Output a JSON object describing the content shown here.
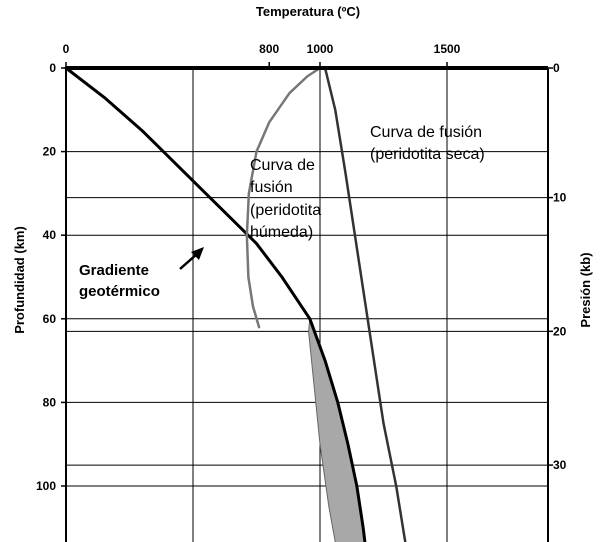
{
  "chart_data": {
    "type": "line",
    "title": "",
    "xlabel": "Temperatura (ºC)",
    "ylabel": "Profundidad (km)",
    "y2label": "Presión (kb)",
    "xlim": [
      0,
      1850
    ],
    "ylim": [
      0,
      115
    ],
    "x_ticks": [
      0,
      800,
      1000,
      1500
    ],
    "x_tick_labels": [
      "0",
      "800",
      "1000",
      "1500"
    ],
    "y_ticks": [
      0,
      20,
      40,
      60,
      80,
      100
    ],
    "y_tick_labels": [
      "0",
      "20",
      "40",
      "60",
      "80",
      "100"
    ],
    "y2_ticks": [
      {
        "label": "0",
        "depth": 0
      },
      {
        "label": "10",
        "depth": 31
      },
      {
        "label": "20",
        "depth": 63
      },
      {
        "label": "30",
        "depth": 95
      }
    ],
    "x_grid": [
      500,
      1000,
      1500
    ],
    "y_grid": [
      20,
      40,
      60,
      80,
      100
    ],
    "y2_grid": [
      31,
      63,
      95
    ],
    "series": [
      {
        "id": "geotherm",
        "color": "#000000",
        "points": [
          [
            0,
            0
          ],
          [
            150,
            7
          ],
          [
            300,
            15
          ],
          [
            450,
            24
          ],
          [
            600,
            33
          ],
          [
            750,
            42
          ],
          [
            850,
            50
          ],
          [
            960,
            60
          ],
          [
            1020,
            70
          ],
          [
            1070,
            80
          ],
          [
            1110,
            90
          ],
          [
            1145,
            100
          ],
          [
            1170,
            110
          ],
          [
            1180,
            115
          ]
        ]
      },
      {
        "id": "wet-solidus",
        "color": "#777777",
        "points": [
          [
            1000,
            0
          ],
          [
            950,
            2
          ],
          [
            880,
            6
          ],
          [
            800,
            13
          ],
          [
            750,
            20
          ],
          [
            720,
            30
          ],
          [
            712,
            40
          ],
          [
            718,
            50
          ],
          [
            736,
            57
          ],
          [
            760,
            62
          ]
        ]
      },
      {
        "id": "dry-solidus",
        "color": "#333333",
        "points": [
          [
            1020,
            0
          ],
          [
            1060,
            10
          ],
          [
            1100,
            25
          ],
          [
            1150,
            45
          ],
          [
            1200,
            65
          ],
          [
            1250,
            85
          ],
          [
            1300,
            100
          ],
          [
            1340,
            115
          ]
        ]
      }
    ],
    "shaded_region": {
      "color": "#a8a8a8",
      "label": "",
      "points": [
        [
          960,
          60
        ],
        [
          1020,
          70
        ],
        [
          1070,
          80
        ],
        [
          1110,
          90
        ],
        [
          1145,
          100
        ],
        [
          1170,
          110
        ],
        [
          1180,
          115
        ],
        [
          1065,
          115
        ],
        [
          1035,
          105
        ],
        [
          1000,
          90
        ],
        [
          975,
          75
        ],
        [
          955,
          63
        ]
      ]
    },
    "annotations": [
      {
        "id": "annot-wet",
        "lines": [
          "Curva de",
          " fusión",
          "(peridotita",
          "húmeda)"
        ]
      },
      {
        "id": "annot-dry",
        "lines": [
          "Curva de fusión",
          "(peridotita seca)"
        ]
      },
      {
        "id": "annot-geo",
        "lines": [
          "Gradiente",
          "geotérmico"
        ]
      }
    ]
  }
}
